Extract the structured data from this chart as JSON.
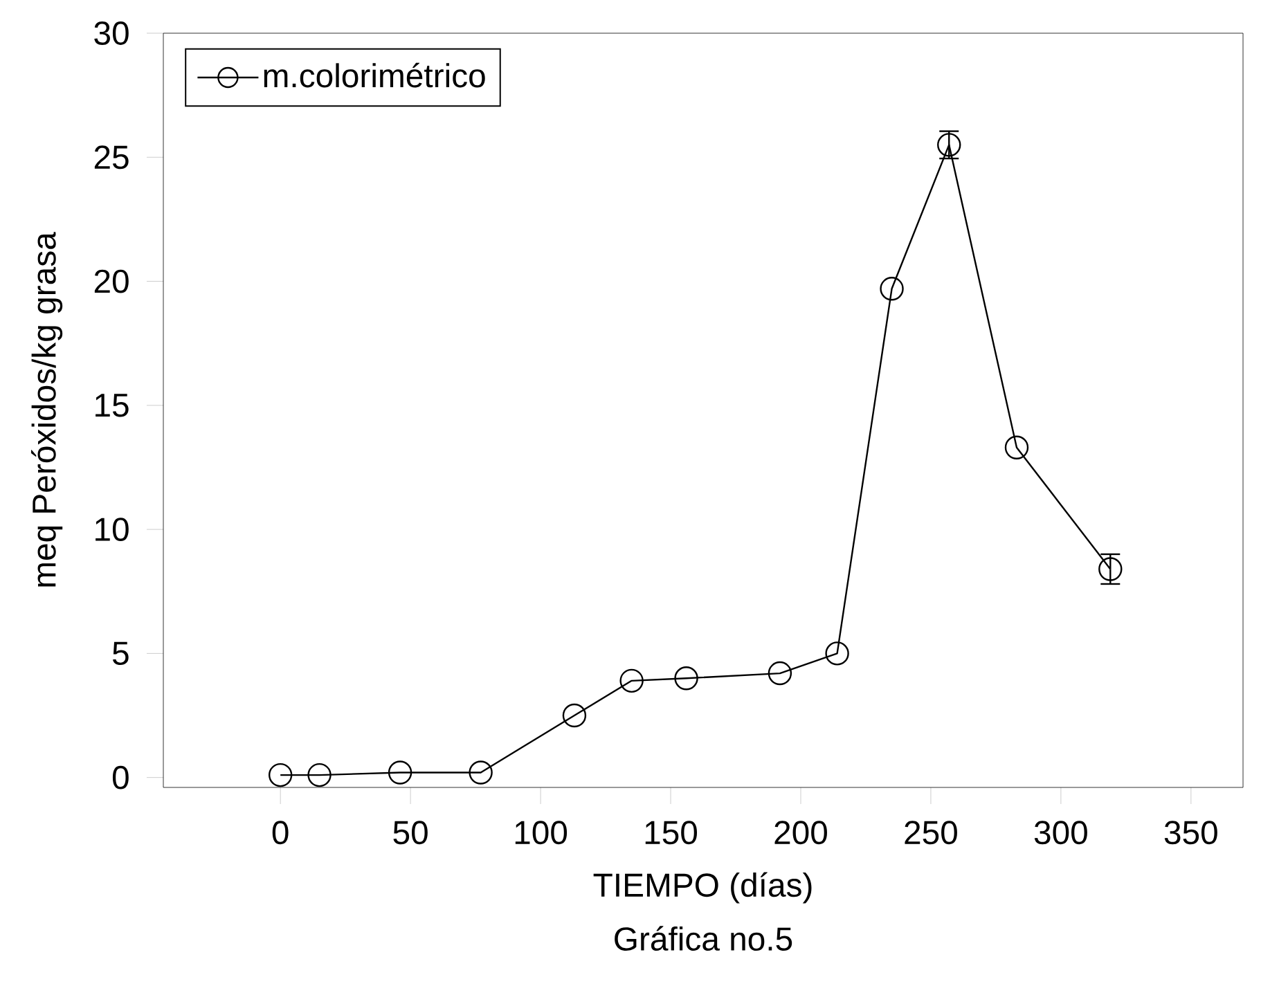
{
  "chart_data": {
    "type": "line",
    "title": "Gráfica no.5",
    "xlabel": "TIEMPO (días)",
    "ylabel": "meq Peróxidos/kg grasa",
    "x": [
      0,
      15,
      46,
      77,
      113,
      135,
      156,
      192,
      214,
      235,
      257,
      283,
      319
    ],
    "series": [
      {
        "name": "m.colorimétrico",
        "color": "#000000",
        "values": [
          0.1,
          0.1,
          0.2,
          0.2,
          2.5,
          3.9,
          4.0,
          4.2,
          5.0,
          19.7,
          25.5,
          13.3,
          8.4
        ],
        "errors": [
          null,
          null,
          null,
          null,
          null,
          null,
          null,
          null,
          null,
          null,
          0.55,
          null,
          0.6
        ]
      }
    ],
    "xlim": [
      -45,
      370
    ],
    "ylim": [
      -0.4,
      30
    ],
    "xticks": [
      0,
      50,
      100,
      150,
      200,
      250,
      300,
      350
    ],
    "yticks": [
      0,
      5,
      10,
      15,
      20,
      25,
      30
    ],
    "legend": "top left",
    "marker": "circle",
    "line_style": "solid",
    "grid": false
  }
}
